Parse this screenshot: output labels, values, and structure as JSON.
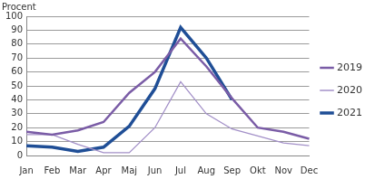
{
  "chart_data": {
    "type": "line",
    "ylabel": "Procent",
    "categories": [
      "Jan",
      "Feb",
      "Mar",
      "Apr",
      "Maj",
      "Jun",
      "Jul",
      "Aug",
      "Sep",
      "Okt",
      "Nov",
      "Dec"
    ],
    "series": [
      {
        "name": "2019",
        "color": "#7a5ca6",
        "values": [
          17,
          15,
          18,
          24,
          45,
          60,
          84,
          64,
          41,
          20,
          17,
          12
        ]
      },
      {
        "name": "2020",
        "color": "#a390c8",
        "values": [
          15,
          15,
          8,
          2,
          2,
          20,
          53,
          30,
          19,
          14,
          9,
          7
        ]
      },
      {
        "name": "2021",
        "color": "#1f4e96",
        "values": [
          7,
          6,
          3,
          6,
          21,
          48,
          92,
          70,
          40,
          null,
          null,
          null
        ]
      }
    ],
    "ylim": [
      0,
      100
    ],
    "yticks": [
      0,
      10,
      20,
      30,
      40,
      50,
      60,
      70,
      80,
      90,
      100
    ],
    "grid": true,
    "legend": "right"
  }
}
